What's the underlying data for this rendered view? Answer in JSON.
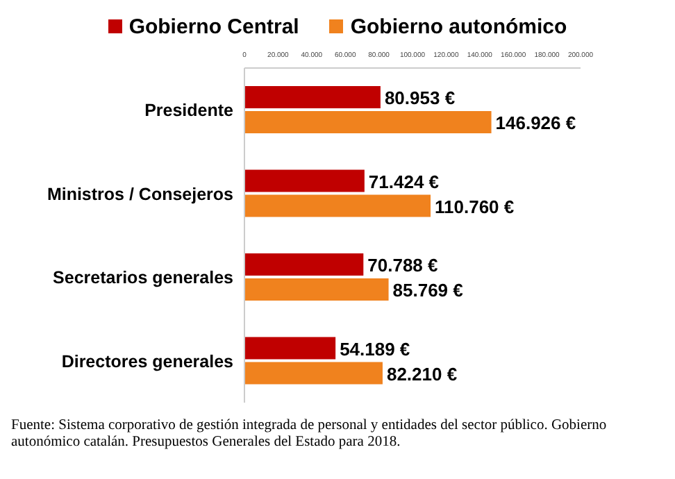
{
  "chart_data": {
    "type": "bar",
    "orientation": "horizontal",
    "categories": [
      "Presidente",
      "Ministros / Consejeros",
      "Secretarios generales",
      "Directores generales"
    ],
    "series": [
      {
        "name": "Gobierno Central",
        "color": "#c00000",
        "values": [
          80953,
          71424,
          70788,
          54189
        ],
        "value_labels": [
          "80.953 €",
          "71.424 €",
          "70.788 €",
          "54.189 €"
        ]
      },
      {
        "name": "Gobierno autonómico",
        "color": "#f0821e",
        "values": [
          146926,
          110760,
          85769,
          82210
        ],
        "value_labels": [
          "146.926 €",
          "110.760 €",
          "85.769 €",
          "82.210 €"
        ]
      }
    ],
    "xlim": [
      0,
      200000
    ],
    "xticks": [
      0,
      {
        "value": 20000,
        "label": "20.000"
      },
      {
        "value": 40000,
        "label": "40.000"
      },
      {
        "value": 60000,
        "label": "60.000"
      },
      {
        "value": 80000,
        "label": "80.000"
      },
      {
        "value": 100000,
        "label": "100.000"
      },
      {
        "value": 120000,
        "label": "120.000"
      },
      {
        "value": 140000,
        "label": "140.000"
      },
      {
        "value": 160000,
        "label": "160.000"
      },
      {
        "value": 180000,
        "label": "180.000"
      },
      {
        "value": 200000,
        "label": "200.000"
      }
    ],
    "legend": "top",
    "grid": false,
    "annotations": [
      "Fuente: Sistema corporativo de gestión integrada de personal y entidades del sector público. Gobierno autonómico catalán. Presupuestos Generales del Estado para 2018."
    ]
  }
}
